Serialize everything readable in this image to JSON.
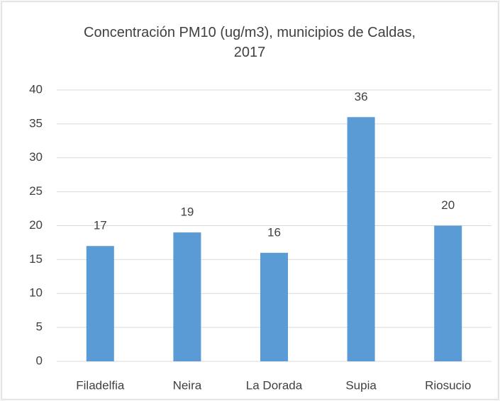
{
  "chart_data": {
    "type": "bar",
    "title": "Concentración PM10 (ug/m3), municipios de Caldas, 2017",
    "categories": [
      "Filadelfia",
      "Neira",
      "La Dorada",
      "Supia",
      "Riosucio"
    ],
    "values": [
      17,
      19,
      16,
      36,
      20
    ],
    "color": "#5b9bd5",
    "ylim": [
      0,
      40
    ],
    "yticks": [
      0,
      5,
      10,
      15,
      20,
      25,
      30,
      35,
      40
    ],
    "grid": true
  }
}
